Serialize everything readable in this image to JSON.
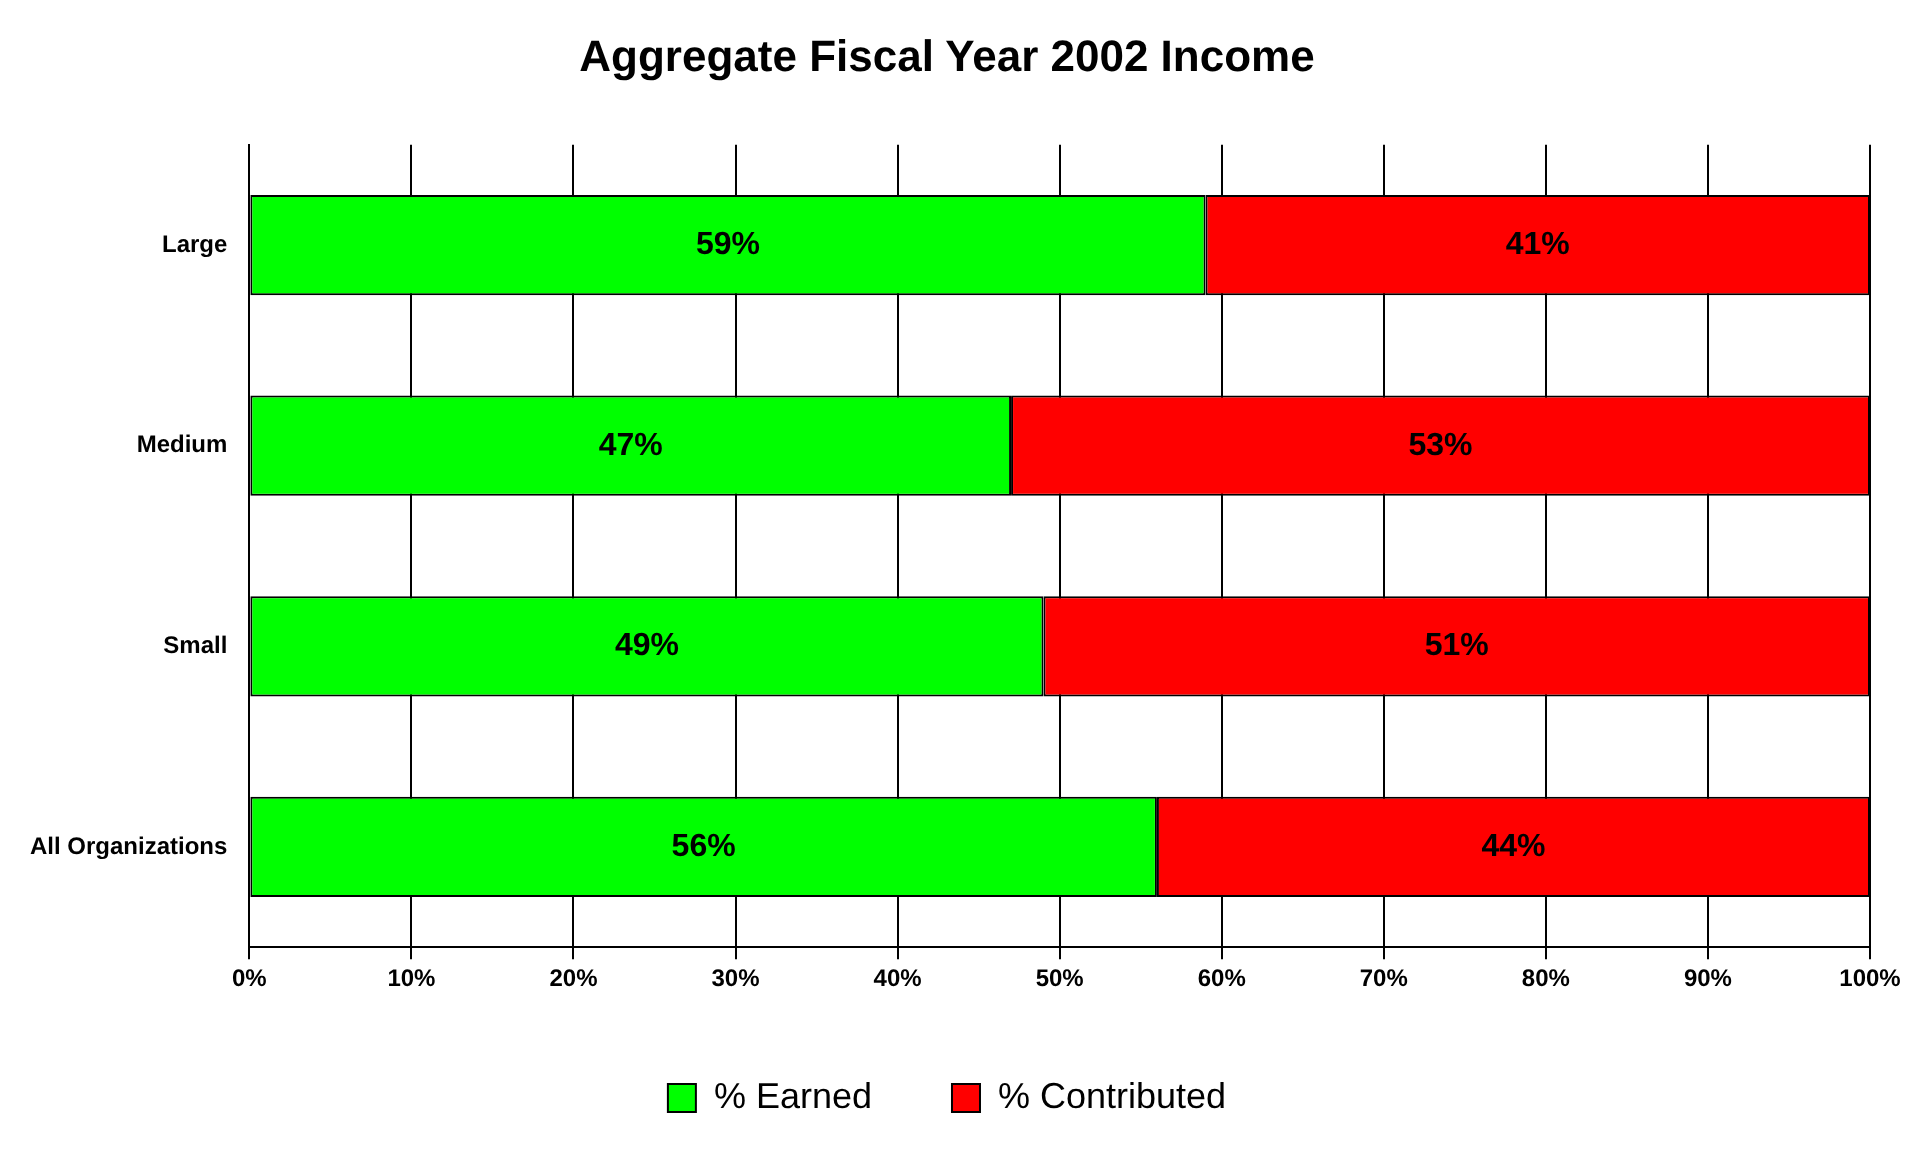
{
  "chart_data": {
    "type": "bar",
    "title": "Aggregate Fiscal Year 2002 Income",
    "orientation": "horizontal",
    "stacked": true,
    "categories": [
      "Large",
      "Medium",
      "Small",
      "All Organizations"
    ],
    "series": [
      {
        "name": "% Earned",
        "color": "#00ff00",
        "values": [
          59,
          47,
          49,
          56
        ],
        "value_labels": [
          "59%",
          "47%",
          "49%",
          "56%"
        ]
      },
      {
        "name": "% Contributed",
        "color": "#ff0000",
        "values": [
          41,
          53,
          51,
          44
        ],
        "value_labels": [
          "41%",
          "53%",
          "51%",
          "44%"
        ]
      }
    ],
    "xlim": [
      0,
      100
    ],
    "xticks": [
      {
        "value": 0,
        "label": "0%"
      },
      {
        "value": 10,
        "label": "10%"
      },
      {
        "value": 20,
        "label": "20%"
      },
      {
        "value": 30,
        "label": "30%"
      },
      {
        "value": 40,
        "label": "40%"
      },
      {
        "value": 50,
        "label": "50%"
      },
      {
        "value": 60,
        "label": "60%"
      },
      {
        "value": 70,
        "label": "70%"
      },
      {
        "value": 80,
        "label": "80%"
      },
      {
        "value": 90,
        "label": "90%"
      },
      {
        "value": 100,
        "label": "100%"
      }
    ],
    "grid": "x",
    "legend": "bottom"
  }
}
